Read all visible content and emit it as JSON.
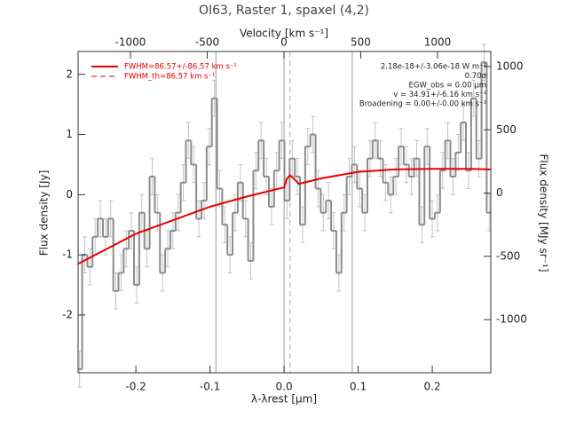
{
  "chart_data": {
    "type": "spectrum",
    "title": "OI63, Raster 1, spaxel (4,2)",
    "xlabel": "λ-λrest [μm]",
    "x2label": "Velocity [km s⁻¹]",
    "ylabel": "Flux density [Jy]",
    "y2label": "Flux density [MJy sr⁻¹]",
    "xlim": [
      -0.278,
      0.279
    ],
    "xticks": [
      -0.2,
      -0.1,
      {
        "value": 0,
        "label": "0.0"
      },
      0.1,
      0.2
    ],
    "x2lim": [
      -1341,
      1347
    ],
    "x2ticks": [
      -1000,
      -500,
      0,
      500,
      1000
    ],
    "ylim": [
      -2.96,
      2.38
    ],
    "yticks": [
      -2,
      -1,
      0,
      1,
      2
    ],
    "y2lim": [
      -1420,
      1119
    ],
    "y2ticks": [
      -1000,
      -500,
      0,
      500,
      1000
    ],
    "vlines": [
      -0.092,
      0,
      0.092
    ],
    "dashed_vline": 0.008,
    "spectrum": {
      "color": "#8c8c8c",
      "error_color": "#c4c4c4",
      "error": 0.3,
      "x": [
        -0.276,
        -0.269,
        -0.262,
        -0.255,
        -0.248,
        -0.241,
        -0.234,
        -0.227,
        -0.22,
        -0.213,
        -0.206,
        -0.199,
        -0.192,
        -0.185,
        -0.178,
        -0.171,
        -0.164,
        -0.157,
        -0.15,
        -0.143,
        -0.136,
        -0.129,
        -0.122,
        -0.115,
        -0.108,
        -0.101,
        -0.094,
        -0.087,
        -0.08,
        -0.073,
        -0.066,
        -0.059,
        -0.052,
        -0.045,
        -0.038,
        -0.031,
        -0.024,
        -0.017,
        -0.01,
        -0.003,
        0.004,
        0.011,
        0.018,
        0.025,
        0.032,
        0.039,
        0.046,
        0.053,
        0.06,
        0.067,
        0.074,
        0.081,
        0.088,
        0.095,
        0.102,
        0.109,
        0.116,
        0.123,
        0.13,
        0.137,
        0.144,
        0.151,
        0.158,
        0.165,
        0.172,
        0.179,
        0.186,
        0.193,
        0.2,
        0.207,
        0.214,
        0.221,
        0.228,
        0.235,
        0.242,
        0.249,
        0.256,
        0.263,
        0.27,
        0.277
      ],
      "values": [
        -2.9,
        -1.0,
        -1.2,
        -0.7,
        -0.4,
        -0.7,
        -0.4,
        -1.6,
        -1.3,
        -0.9,
        -0.6,
        -1.5,
        -0.3,
        -0.9,
        0.3,
        -0.3,
        -1.3,
        -0.9,
        -0.6,
        -0.3,
        0.2,
        0.9,
        0.5,
        -0.4,
        -0.1,
        0.8,
        1.6,
        0.1,
        -0.5,
        -1.0,
        -0.3,
        0.2,
        -0.4,
        -1.1,
        0.4,
        0.9,
        0.3,
        -0.2,
        0.4,
        0.9,
        -0.1,
        0.6,
        0.3,
        -0.5,
        0.8,
        1.0,
        0.1,
        -0.3,
        -0.1,
        -0.6,
        -1.3,
        -0.3,
        0.3,
        0.5,
        0.1,
        -0.3,
        0.6,
        0.9,
        0.6,
        0.2,
        0.0,
        0.3,
        0.8,
        0.5,
        0.3,
        0.6,
        -0.5,
        0.8,
        -0.4,
        -0.3,
        0.4,
        0.9,
        0.3,
        0.7,
        1.2,
        0.4,
        1.6,
        0.6,
        2.2,
        -0.3
      ]
    },
    "series": [
      {
        "name": "FWHM=86.57+/-86.57 km s⁻¹",
        "color": "#e60000",
        "style": "solid",
        "x": [
          -0.278,
          -0.2,
          -0.1,
          -0.05,
          0,
          0.004,
          0.008,
          0.013,
          0.02,
          0.05,
          0.1,
          0.15,
          0.2,
          0.25,
          0.279
        ],
        "values": [
          -1.15,
          -0.65,
          -0.2,
          -0.03,
          0.12,
          0.27,
          0.32,
          0.27,
          0.18,
          0.27,
          0.38,
          0.42,
          0.43,
          0.43,
          0.42
        ]
      },
      {
        "name": "FWHM_th=86.57 km s⁻¹",
        "color": "#e60000",
        "style": "dashed",
        "x": [],
        "values": []
      }
    ],
    "annotations": [
      "2.18e-18+/-3.06e-18 W m⁻²",
      "0.70σ",
      "EGW_obs = 0.00 μm",
      "v = 34.91+/-6.16 km s⁻¹",
      "Broadening = 0.00+/-0.00 km s⁻¹"
    ]
  }
}
